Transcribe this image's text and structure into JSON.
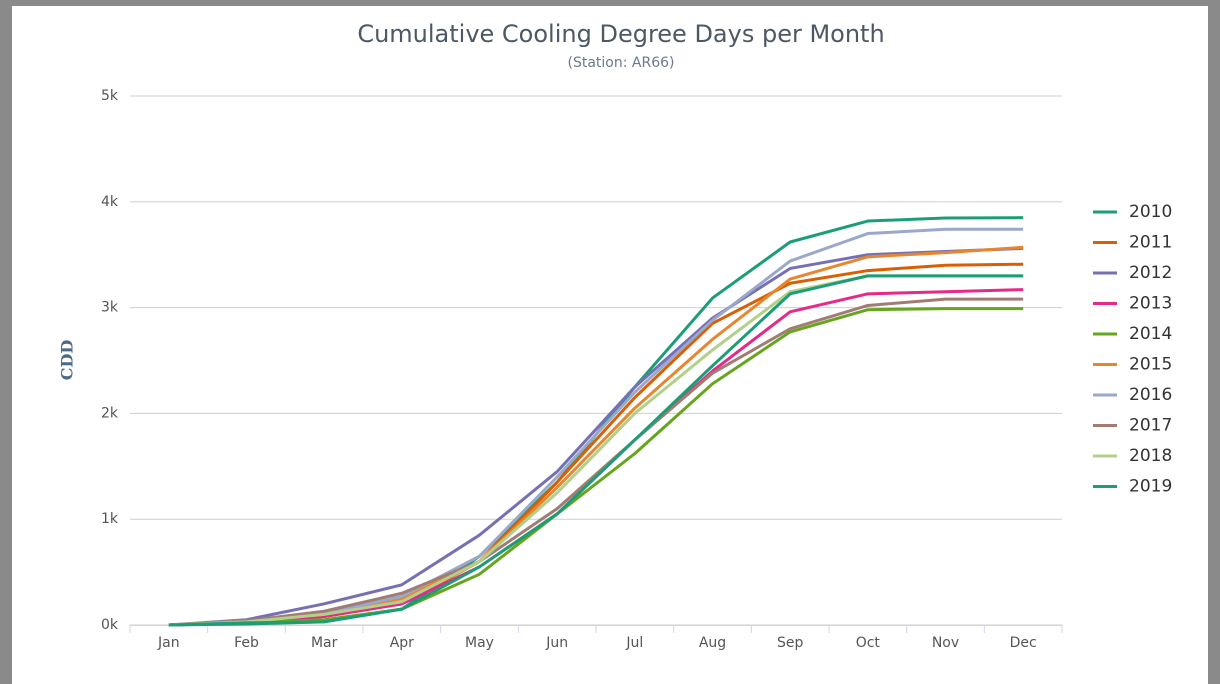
{
  "chart_data": {
    "type": "line",
    "title": "Cumulative Cooling Degree Days per Month",
    "subtitle": "(Station: AR66)",
    "y_label": "CDD",
    "categories": [
      "Jan",
      "Feb",
      "Mar",
      "Apr",
      "May",
      "Jun",
      "Jul",
      "Aug",
      "Sep",
      "Oct",
      "Nov",
      "Dec"
    ],
    "ylim": [
      0,
      5000
    ],
    "yticks": [
      {
        "value": 0,
        "label": "0k"
      },
      {
        "value": 1000,
        "label": "1k"
      },
      {
        "value": 2000,
        "label": "2k"
      },
      {
        "value": 3000,
        "label": "3k"
      },
      {
        "value": 4000,
        "label": "4k"
      },
      {
        "value": 5000,
        "label": "5k"
      }
    ],
    "grid": true,
    "legend": "right",
    "series": [
      {
        "name": "2010",
        "color": "#1b9e77",
        "values": [
          0,
          10,
          30,
          150,
          650,
          1350,
          2250,
          3090,
          3620,
          3818,
          3847,
          3850
        ]
      },
      {
        "name": "2011",
        "color": "#d95f02",
        "values": [
          0,
          30,
          80,
          200,
          600,
          1350,
          2150,
          2850,
          3230,
          3350,
          3400,
          3410
        ]
      },
      {
        "name": "2012",
        "color": "#7570b3",
        "values": [
          0,
          50,
          200,
          380,
          850,
          1450,
          2250,
          2900,
          3370,
          3500,
          3530,
          3560
        ]
      },
      {
        "name": "2013",
        "color": "#e7298a",
        "values": [
          0,
          30,
          80,
          200,
          550,
          1050,
          1750,
          2400,
          2960,
          3130,
          3150,
          3170
        ]
      },
      {
        "name": "2014",
        "color": "#66a61e",
        "values": [
          0,
          20,
          50,
          150,
          480,
          1050,
          1620,
          2280,
          2770,
          2980,
          2990,
          2990
        ]
      },
      {
        "name": "2015",
        "color": "#e6862f",
        "values": [
          0,
          40,
          100,
          250,
          600,
          1300,
          2050,
          2700,
          3270,
          3480,
          3520,
          3570
        ]
      },
      {
        "name": "2016",
        "color": "#9aa8cc",
        "values": [
          0,
          40,
          110,
          270,
          650,
          1400,
          2200,
          2880,
          3440,
          3700,
          3740,
          3740
        ]
      },
      {
        "name": "2017",
        "color": "#a07c74",
        "values": [
          0,
          40,
          130,
          300,
          600,
          1100,
          1750,
          2380,
          2800,
          3020,
          3080,
          3080
        ]
      },
      {
        "name": "2018",
        "color": "#b2d08a",
        "values": [
          0,
          30,
          100,
          220,
          600,
          1250,
          2000,
          2600,
          3150,
          3300,
          3300,
          3300
        ]
      },
      {
        "name": "2019",
        "color": "#1b9e77",
        "values": [
          0,
          20,
          30,
          150,
          550,
          1050,
          1750,
          2450,
          3130,
          3300,
          3300,
          3300
        ]
      }
    ]
  }
}
